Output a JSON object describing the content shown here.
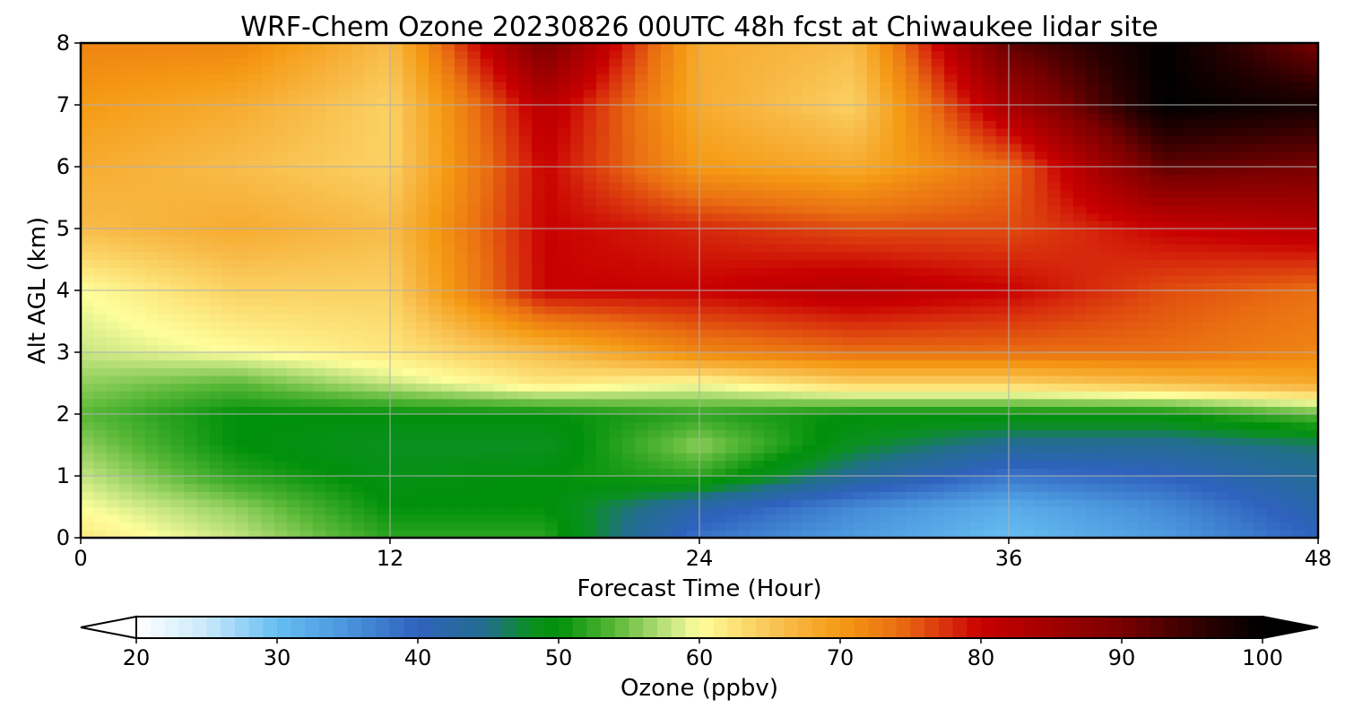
{
  "chart_data": {
    "type": "heatmap",
    "title": "WRF-Chem Ozone  20230826 00UTC 48h fcst at Chiwaukee lidar site",
    "xlabel": "Forecast Time (Hour)",
    "ylabel": "Alt AGL (km)",
    "xlim": [
      0,
      48
    ],
    "ylim": [
      0,
      8
    ],
    "x_ticks": [
      0,
      12,
      24,
      36,
      48
    ],
    "y_ticks": [
      0,
      1,
      2,
      3,
      4,
      5,
      6,
      7,
      8
    ],
    "grid": true,
    "x": [
      0,
      6,
      12,
      18,
      24,
      30,
      36,
      42,
      48
    ],
    "y": [
      0,
      0.5,
      1,
      1.5,
      2,
      2.5,
      3,
      4,
      5,
      6,
      7,
      8
    ],
    "z_ppbv": [
      [
        62,
        58,
        52,
        52,
        38,
        34,
        30,
        34,
        40
      ],
      [
        60,
        56,
        50,
        50,
        42,
        36,
        32,
        36,
        42
      ],
      [
        58,
        52,
        49,
        50,
        52,
        44,
        38,
        40,
        44
      ],
      [
        56,
        50,
        48,
        48,
        56,
        48,
        44,
        44,
        46
      ],
      [
        54,
        50,
        50,
        50,
        52,
        50,
        50,
        50,
        54
      ],
      [
        56,
        54,
        58,
        62,
        60,
        64,
        64,
        66,
        68
      ],
      [
        58,
        60,
        62,
        66,
        72,
        74,
        74,
        74,
        72
      ],
      [
        60,
        64,
        64,
        80,
        80,
        82,
        80,
        76,
        74
      ],
      [
        66,
        68,
        66,
        80,
        78,
        76,
        76,
        80,
        82
      ],
      [
        68,
        66,
        64,
        80,
        70,
        68,
        74,
        92,
        90
      ],
      [
        70,
        68,
        64,
        82,
        68,
        64,
        84,
        100,
        98
      ],
      [
        72,
        72,
        66,
        90,
        68,
        66,
        92,
        100,
        90
      ]
    ],
    "colorbar": {
      "label": "Ozone  (ppbv)",
      "min": 20,
      "max": 100,
      "ticks": [
        20,
        30,
        40,
        50,
        60,
        70,
        80,
        90,
        100
      ],
      "extend": "both"
    },
    "colormap": [
      [
        20,
        "#ffffff"
      ],
      [
        25,
        "#c8e8fa"
      ],
      [
        30,
        "#66bef2"
      ],
      [
        35,
        "#4a94dc"
      ],
      [
        40,
        "#2f62be"
      ],
      [
        45,
        "#226e8c"
      ],
      [
        48,
        "#0a9020"
      ],
      [
        50,
        "#00900a"
      ],
      [
        54,
        "#5ab838"
      ],
      [
        58,
        "#c6e682"
      ],
      [
        60,
        "#fefe9c"
      ],
      [
        63,
        "#fcdc70"
      ],
      [
        66,
        "#f8bc4a"
      ],
      [
        70,
        "#f59a14"
      ],
      [
        74,
        "#ea7012"
      ],
      [
        78,
        "#d6280c"
      ],
      [
        80,
        "#c80000"
      ],
      [
        84,
        "#a80000"
      ],
      [
        90,
        "#7a0000"
      ],
      [
        96,
        "#2a0000"
      ],
      [
        100,
        "#000000"
      ]
    ]
  }
}
